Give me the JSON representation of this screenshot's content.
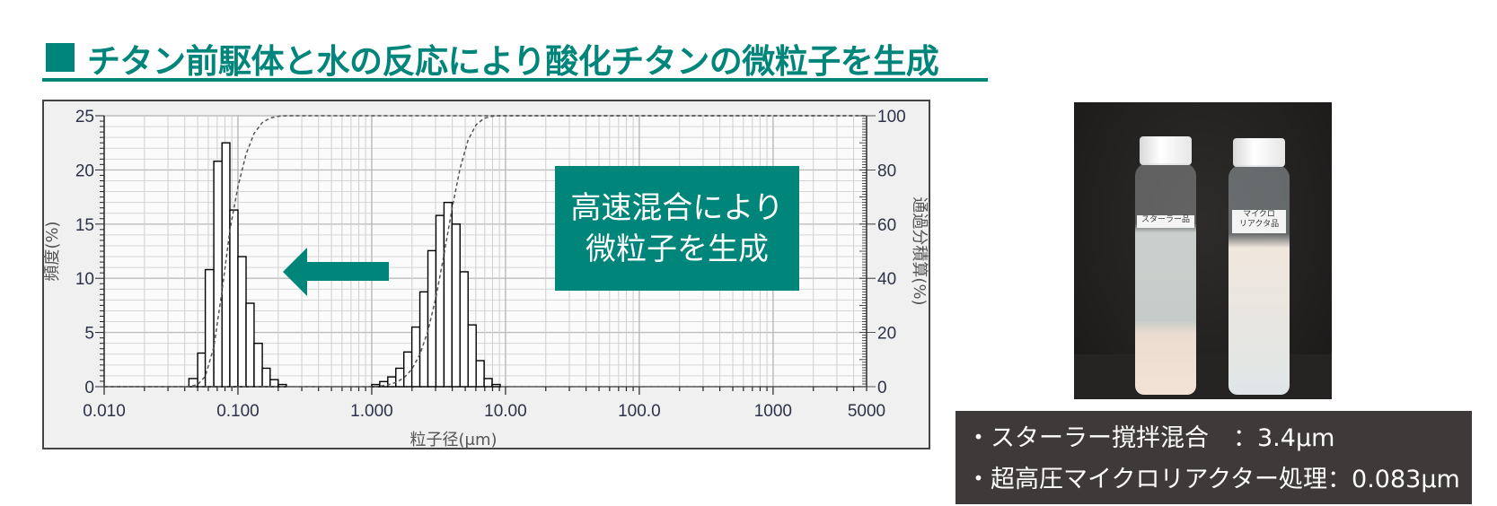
{
  "title": "チタン前駆体と水の反応により酸化チタンの微粒子を生成",
  "colors": {
    "accent": "#00857a",
    "caption_bg": "#3d3a39",
    "bar_edge": "#000000",
    "grid": "#c8c8c8"
  },
  "callout": {
    "line1": "高速混合により",
    "line2": "微粒子を生成"
  },
  "arrow": {
    "icon": "arrow-left-icon",
    "direction": "left"
  },
  "chart_data": {
    "type": "bar",
    "xlabel": "粒子径(μm)",
    "ylabel": "頻度(%)",
    "y2label": "通過分積算(%)",
    "xscale": "log",
    "xlim": [
      0.01,
      5000
    ],
    "ylim": [
      0,
      25
    ],
    "y2lim": [
      0,
      100
    ],
    "grid": true,
    "x_ticks": [
      "0.010",
      "0.100",
      "1.000",
      "10.00",
      "100.0",
      "1000",
      "5000"
    ],
    "x_tick_values": [
      0.01,
      0.1,
      1,
      10,
      100,
      1000,
      5000
    ],
    "y_ticks": [
      "0",
      "5",
      "10",
      "15",
      "20",
      "25"
    ],
    "y2_ticks": [
      "0",
      "20",
      "40",
      "60",
      "80",
      "100"
    ],
    "series": [
      {
        "bin_edges": [
          0.043,
          0.05,
          0.057,
          0.066,
          0.076,
          0.087,
          0.1,
          0.115,
          0.132,
          0.152,
          0.174,
          0.2,
          0.23
        ],
        "values": [
          0.75,
          3.1,
          10.8,
          20.8,
          22.5,
          16.3,
          12.0,
          7.7,
          4.0,
          1.7,
          0.65,
          0.2
        ]
      },
      {
        "bin_edges": [
          1.0,
          1.148,
          1.318,
          1.514,
          1.738,
          1.995,
          2.29,
          2.63,
          3.02,
          3.47,
          3.98,
          4.57,
          5.25,
          6.03,
          6.92,
          7.94,
          9.12
        ],
        "values": [
          0.2,
          0.47,
          0.9,
          1.7,
          3.2,
          5.5,
          8.75,
          12.55,
          15.8,
          17.0,
          15.0,
          10.6,
          5.7,
          2.4,
          0.75,
          0.2
        ]
      }
    ],
    "cumulative": "dashed line per series, right axis"
  },
  "photo": {
    "left_label": "スターラー品",
    "right_label_1": "マイクロ",
    "right_label_2": "リアクタ品"
  },
  "caption": {
    "line1": "・スターラー撹拌混合　：3.4μm",
    "line2": "・超高圧マイクロリアクター処理：0.083μm"
  }
}
